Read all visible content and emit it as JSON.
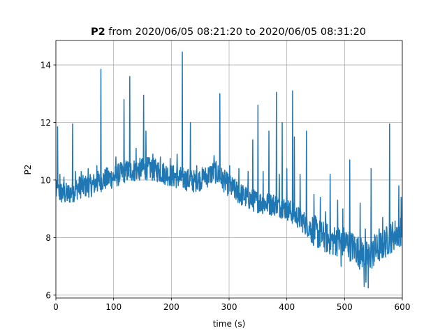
{
  "chart_data": {
    "type": "line",
    "title_bold": "P2",
    "title_rest": " from 2020/06/05 08:21:20 to 2020/06/05 08:31:20",
    "xlabel": "time (s)",
    "ylabel": "P2",
    "xlim": [
      0,
      600
    ],
    "ylim": [
      5.9,
      14.85
    ],
    "xticks": [
      0,
      100,
      200,
      300,
      400,
      500,
      600
    ],
    "yticks": [
      6,
      8,
      10,
      12,
      14
    ],
    "grid": true,
    "line_color": "#1f77b4",
    "series": [
      {
        "values_note_free": true,
        "trend": [
          [
            0,
            9.6
          ],
          [
            20,
            9.5
          ],
          [
            40,
            9.75
          ],
          [
            60,
            9.8
          ],
          [
            80,
            10.0
          ],
          [
            100,
            10.1
          ],
          [
            120,
            10.3
          ],
          [
            140,
            10.35
          ],
          [
            160,
            10.4
          ],
          [
            180,
            10.3
          ],
          [
            200,
            10.15
          ],
          [
            220,
            10.05
          ],
          [
            240,
            9.95
          ],
          [
            260,
            10.1
          ],
          [
            275,
            10.3
          ],
          [
            285,
            10.1
          ],
          [
            300,
            9.8
          ],
          [
            320,
            9.5
          ],
          [
            340,
            9.3
          ],
          [
            360,
            9.2
          ],
          [
            380,
            9.15
          ],
          [
            400,
            9.0
          ],
          [
            420,
            8.7
          ],
          [
            440,
            8.35
          ],
          [
            460,
            8.05
          ],
          [
            480,
            7.9
          ],
          [
            500,
            7.85
          ],
          [
            520,
            7.6
          ],
          [
            540,
            7.3
          ],
          [
            560,
            7.65
          ],
          [
            580,
            8.0
          ],
          [
            600,
            8.3
          ]
        ],
        "spikes": [
          [
            3,
            11.85
          ],
          [
            7,
            10.2
          ],
          [
            14,
            10.1
          ],
          [
            29,
            11.95
          ],
          [
            34,
            10.3
          ],
          [
            44,
            10.3
          ],
          [
            56,
            10.4
          ],
          [
            71,
            10.5
          ],
          [
            78,
            13.85
          ],
          [
            104,
            10.8
          ],
          [
            118,
            12.8
          ],
          [
            128,
            13.6
          ],
          [
            139,
            11.1
          ],
          [
            152,
            12.95
          ],
          [
            156,
            11.7
          ],
          [
            168,
            10.9
          ],
          [
            181,
            10.8
          ],
          [
            198,
            10.75
          ],
          [
            210,
            10.9
          ],
          [
            219,
            14.45
          ],
          [
            233,
            12.0
          ],
          [
            244,
            10.5
          ],
          [
            256,
            10.3
          ],
          [
            274,
            10.85
          ],
          [
            284,
            13.0
          ],
          [
            301,
            10.5
          ],
          [
            317,
            10.4
          ],
          [
            333,
            10.3
          ],
          [
            341,
            11.4
          ],
          [
            350,
            12.6
          ],
          [
            359,
            10.3
          ],
          [
            369,
            11.7
          ],
          [
            382,
            13.05
          ],
          [
            387,
            10.2
          ],
          [
            392,
            12.0
          ],
          [
            400,
            10.4
          ],
          [
            410,
            13.1
          ],
          [
            413,
            11.5
          ],
          [
            423,
            10.2
          ],
          [
            434,
            11.7
          ],
          [
            447,
            9.5
          ],
          [
            458,
            9.4
          ],
          [
            467,
            8.9
          ],
          [
            475,
            10.2
          ],
          [
            488,
            9.3
          ],
          [
            497,
            9.0
          ],
          [
            509,
            10.7
          ],
          [
            527,
            9.2
          ],
          [
            536,
            8.3
          ],
          [
            546,
            10.4
          ],
          [
            552,
            8.1
          ],
          [
            560,
            8.3
          ],
          [
            566,
            8.7
          ],
          [
            578,
            11.95
          ],
          [
            584,
            8.2
          ],
          [
            594,
            9.8
          ],
          [
            598,
            9.4
          ]
        ],
        "dips": [
          [
            534,
            6.3
          ],
          [
            537,
            6.45
          ],
          [
            541,
            6.25
          ],
          [
            494,
            7.0
          ],
          [
            526,
            6.9
          ],
          [
            548,
            7.2
          ]
        ]
      }
    ]
  }
}
